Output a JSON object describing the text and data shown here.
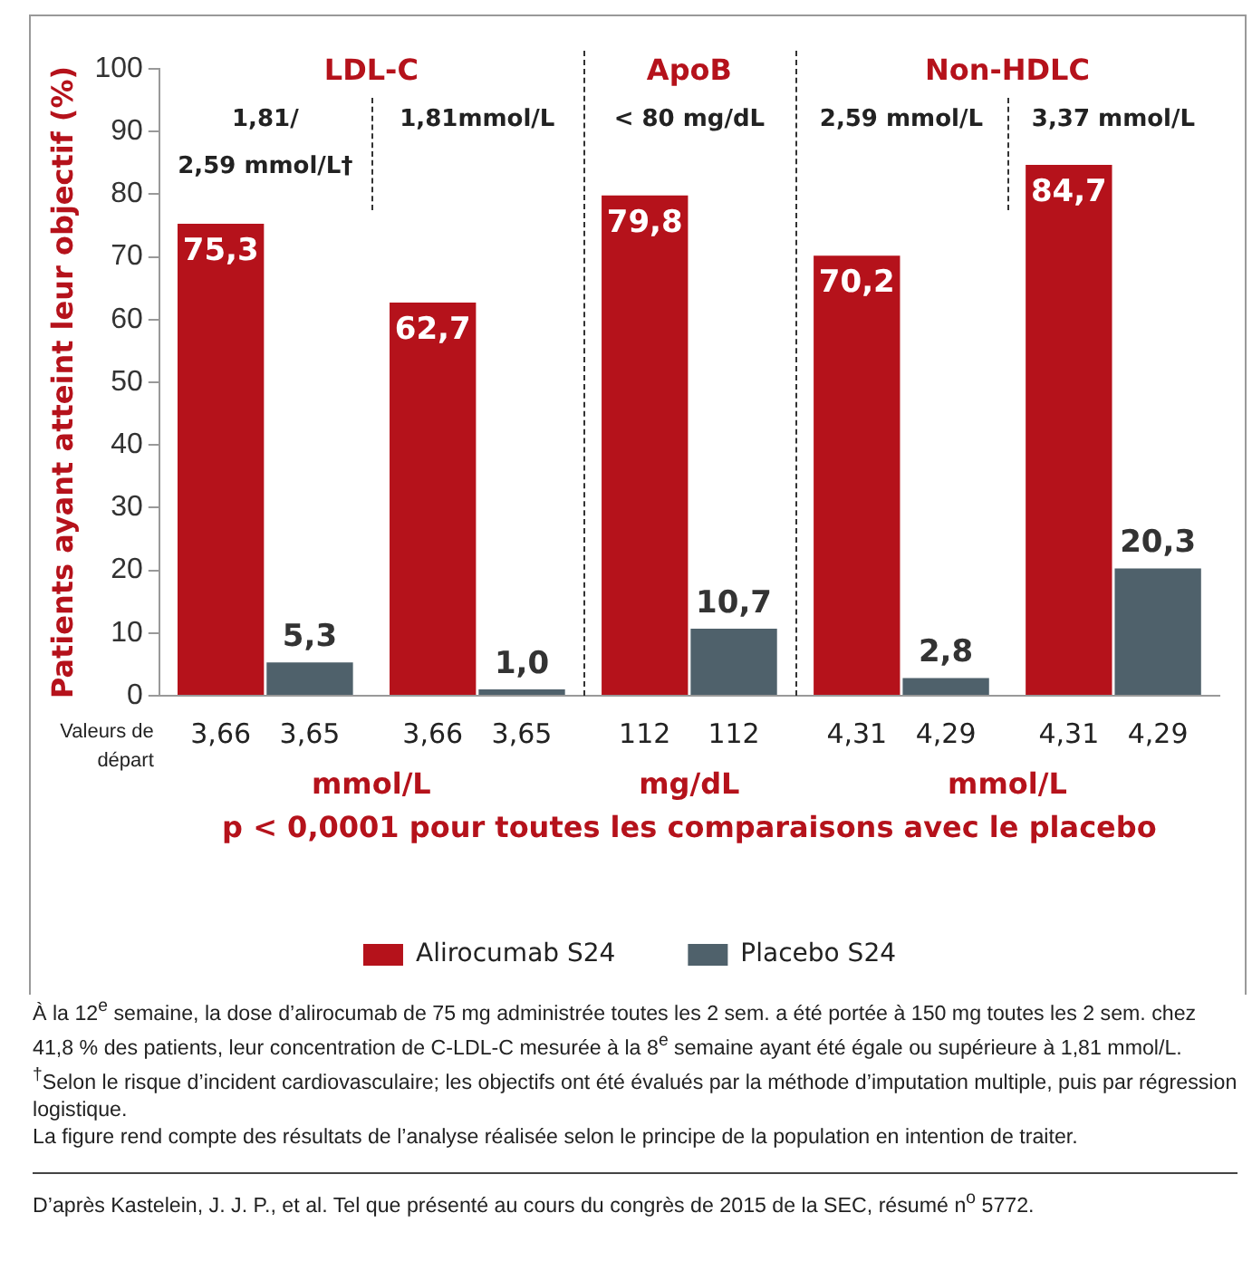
{
  "chart_data": {
    "type": "bar",
    "ylabel": "Patients ayant atteint leur objectif (%)",
    "categories": [
      "1,81/\n2,59 mmol/L†",
      "1,81mmol/L",
      "< 80 mg/dL",
      "2,59 mmol/L",
      "3,37 mmol/L"
    ],
    "series": [
      {
        "name": "Alirocumab S24",
        "color": "#b5121b",
        "values": [
          75.3,
          62.7,
          79.8,
          70.2,
          84.7
        ],
        "value_labels": [
          "75,3",
          "62,7",
          "79,8",
          "70,2",
          "84,7"
        ]
      },
      {
        "name": "Placebo S24",
        "color": "#4f616b",
        "values": [
          5.3,
          1.0,
          10.7,
          2.8,
          20.3
        ],
        "value_labels": [
          "5,3",
          "1,0",
          "10,7",
          "2,8",
          "20,3"
        ]
      }
    ],
    "ylim": [
      0,
      100
    ],
    "yticks": [
      0,
      10,
      20,
      30,
      40,
      50,
      60,
      70,
      80,
      90,
      100
    ],
    "grid": false,
    "legend": "bottom",
    "annotations": [
      "LDL-C",
      "ApoB",
      "Non-HDLC",
      "Valeurs de départ",
      "3,66",
      "3,65",
      "3,66",
      "3,65",
      "112",
      "112",
      "4,31",
      "4,29",
      "4,31",
      "4,29",
      "mmol/L",
      "mg/dL",
      "mmol/L",
      "p < 0,0001 pour toutes les comparaisons avec le placebo",
      "À la 12$^{e}$ semaine, la dose d’alirocumab de 75 mg administrée toutes les 2 sem. a été portée à 150 mg toutes les 2 sem. chez 41,8 % des patients, leur concentration de C-LDL-C mesurée à la 8$^{e}$ semaine ayant été égale ou supérieure à 1,81 mmol/L. $^{†}$Selon le risque d’incident cardiovasculaire; les objectifs ont été évalués par la méthode d’imputation multiple, puis par régression logistique.",
      "La figure rend compte des résultats de l’analyse réalisée selon le principe de la population en intention de traiter.",
      "D’après Kastelein, J. J. P., et al. Tel que présenté au cours du congrès de 2015 de la SEC, résumé n$^{o}$ 5772."
    ]
  }
}
